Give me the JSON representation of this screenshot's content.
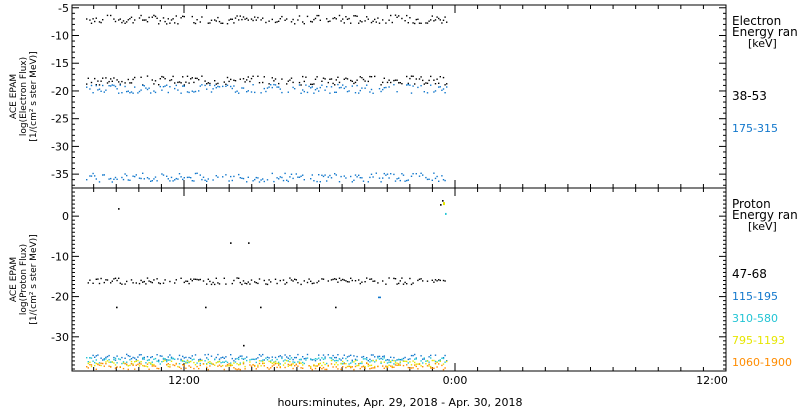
{
  "chart_data": [
    {
      "type": "scatter",
      "ylabel": [
        "ACE EPAM",
        "log(Electron Flux)",
        "[1/(cm² s ster MeV)]"
      ],
      "legend_title": [
        "Electron",
        "Energy ran",
        "[keV]"
      ],
      "ylim": [
        -37.5,
        -4.5
      ],
      "yticks": [
        -5,
        -10,
        -15,
        -20,
        -25,
        -30,
        -35
      ],
      "series": [
        {
          "name": "38-53",
          "color": "#000000",
          "y_bands": [
            -7,
            -18
          ]
        },
        {
          "name": "175-315",
          "color": "#1177cc",
          "y_bands": [
            -19.5,
            -35.5
          ]
        }
      ]
    },
    {
      "type": "scatter",
      "ylabel": [
        "ACE EPAM",
        "log(Proton Flux)",
        "[1/(cm² s ster MeV)]"
      ],
      "legend_title": [
        "Proton",
        "Energy ran",
        "[keV]"
      ],
      "ylim": [
        -38.5,
        7
      ],
      "yticks": [
        0,
        -10,
        -20,
        -30
      ],
      "series": [
        {
          "name": "47-68",
          "color": "#000000",
          "y_bands": [
            -16
          ]
        },
        {
          "name": "115-195",
          "color": "#1177cc",
          "y_bands": [
            -35
          ]
        },
        {
          "name": "310-580",
          "color": "#22c4d4",
          "y_bands": [
            -35.8
          ]
        },
        {
          "name": "795-1193",
          "color": "#e6e600",
          "y_bands": [
            -36.5
          ]
        },
        {
          "name": "1060-1900",
          "color": "#ff8c00",
          "y_bands": [
            -37.2
          ]
        }
      ]
    }
  ],
  "x_axis": {
    "title": "hours:minutes, Apr. 29, 2018 - Apr. 30, 2018",
    "tick_labels": [
      "12:00",
      "0:00",
      "12:00"
    ],
    "data_end_label": "0:00"
  }
}
